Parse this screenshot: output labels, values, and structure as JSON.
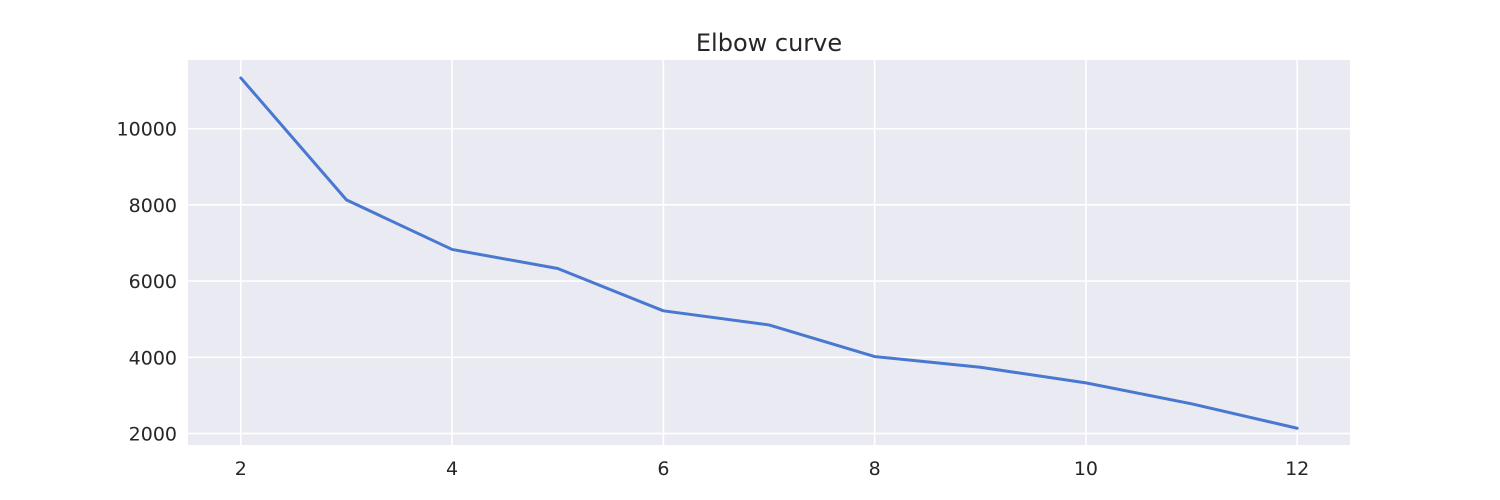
{
  "chart_data": {
    "type": "line",
    "title": "Elbow curve",
    "xlabel": "",
    "ylabel": "",
    "x": [
      2,
      3,
      4,
      5,
      6,
      7,
      8,
      9,
      10,
      11,
      12
    ],
    "series": [
      {
        "values": [
          11330,
          8130,
          6830,
          6330,
          5220,
          4850,
          4020,
          3740,
          3330,
          2780,
          2140
        ]
      }
    ],
    "xlim": [
      1.5,
      12.5
    ],
    "ylim": [
      1700,
      11800
    ],
    "x_ticks": [
      2,
      4,
      6,
      8,
      10,
      12
    ],
    "y_ticks": [
      2000,
      4000,
      6000,
      8000,
      10000
    ],
    "grid": true,
    "legend": "none",
    "colors": {
      "plot_background": "#eaeaf2",
      "grid": "#ffffff",
      "line": "#4878d0",
      "text": "#262626"
    }
  }
}
